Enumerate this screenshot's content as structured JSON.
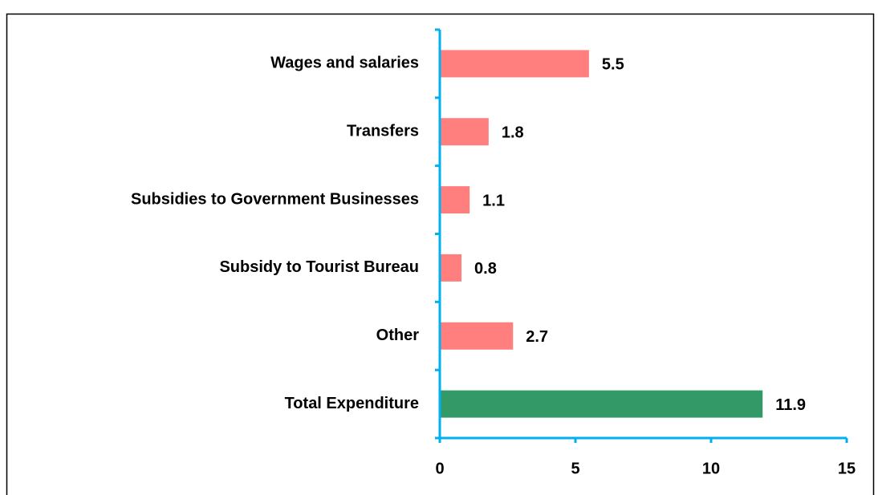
{
  "chart_data": {
    "type": "barh",
    "categories": [
      "Wages and salaries",
      "Transfers",
      "Subsidies to Government Businesses",
      "Subsidy to Tourist Bureau",
      "Other",
      "Total Expenditure"
    ],
    "values": [
      5.5,
      1.8,
      1.1,
      0.8,
      2.7,
      11.9
    ],
    "colors": [
      "#ff7f7f",
      "#ff7f7f",
      "#ff7f7f",
      "#ff7f7f",
      "#ff7f7f",
      "#339966"
    ],
    "axis_color": "#00b0f0",
    "xlim": [
      0,
      15
    ],
    "xticks": [
      0,
      5,
      10,
      15
    ],
    "grid": false
  }
}
